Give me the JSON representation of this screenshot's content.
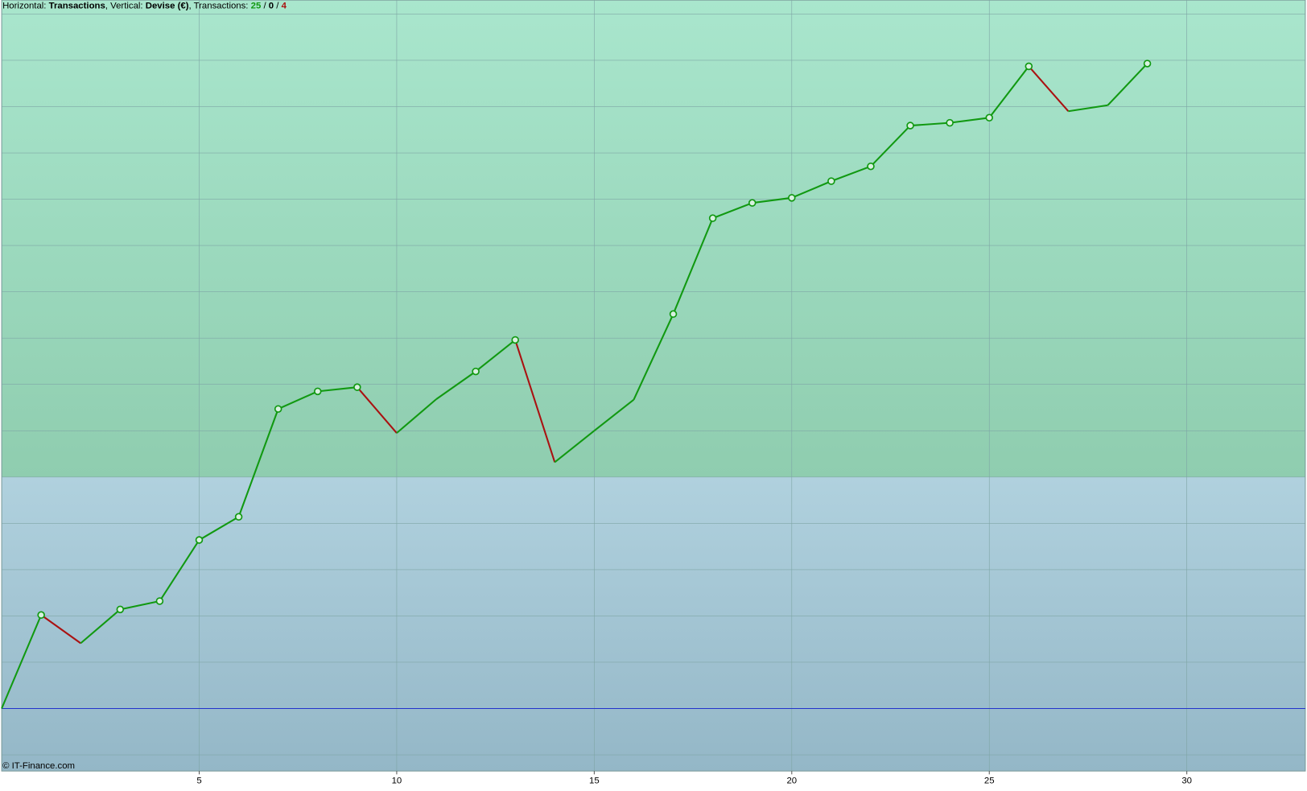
{
  "chart_data": {
    "type": "line",
    "header": [
      "Horizontal: ",
      "Transactions",
      ", Vertical: ",
      "Devise (€)",
      ", Transactions: ",
      "25",
      " / ",
      "0",
      " / ",
      "4"
    ],
    "footer": "© IT-Finance.com",
    "x": [
      0,
      1,
      2,
      3,
      4,
      5,
      6,
      7,
      8,
      9,
      10,
      11,
      12,
      13,
      14,
      15,
      16,
      17,
      18,
      19,
      20,
      21,
      22,
      23,
      24,
      25,
      26,
      27,
      28,
      29
    ],
    "values": [
      0,
      2.02,
      1.41,
      2.14,
      2.32,
      3.64,
      4.14,
      6.47,
      6.85,
      6.94,
      5.95,
      6.68,
      7.28,
      7.96,
      5.32,
      6.0,
      6.67,
      8.52,
      10.59,
      10.92,
      11.03,
      11.39,
      11.71,
      12.59,
      12.65,
      12.76,
      13.87,
      12.9,
      13.03,
      13.93
    ],
    "up_color": "#119911",
    "down_color": "#aa1111",
    "zero_line_color": "#2233cc",
    "threshold": 5,
    "xlim": [
      0,
      33
    ],
    "xticks": [
      5,
      10,
      15,
      20,
      25,
      30
    ],
    "ylim": [
      -1.35,
      15.3
    ],
    "yticks": [
      -1,
      0,
      1,
      2,
      3,
      4,
      5,
      6,
      7,
      8,
      9,
      10,
      11,
      12,
      13,
      14,
      15
    ],
    "grid": true
  }
}
